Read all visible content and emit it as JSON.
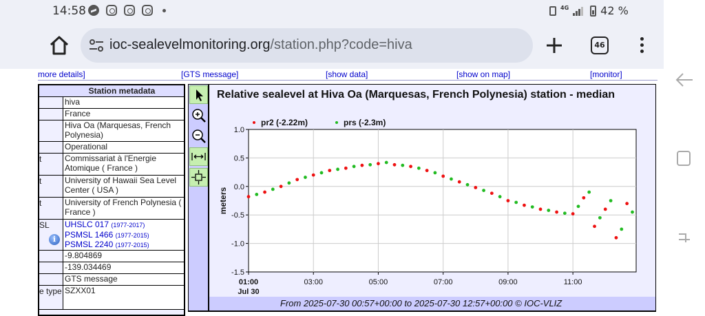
{
  "status": {
    "time": "14:58",
    "network": "4G",
    "battery": "42 %"
  },
  "browser": {
    "url_domain": "ioc-sealevelmonitoring.org",
    "url_path": "/station.php?code=hiva",
    "tab_count": "46"
  },
  "nav_links": [
    "more details]",
    "[GTS message]",
    "[show data]",
    "[show on map]",
    "[monitor]"
  ],
  "metadata": {
    "header": "Station metadata",
    "rows": [
      {
        "key": "",
        "value": "hiva",
        "h": 17
      },
      {
        "key": "",
        "value": "France",
        "h": 17
      },
      {
        "key": "",
        "value": "Hiva Oa (Marquesas, French Polynesia)",
        "h": 31
      },
      {
        "key": "",
        "value": "Operational",
        "h": 17
      },
      {
        "key": "t",
        "value": "Commissariat à l'Energie Atomique ( France )",
        "h": 32
      },
      {
        "key": "t",
        "value": "University of Hawaii Sea Level Center ( USA )",
        "h": 32
      },
      {
        "key": "t",
        "value": "University of French Polynesia ( France )",
        "h": 32
      },
      {
        "key": "SL",
        "links": [
          {
            "text": "UHSLC 017",
            "range": "(1977-2017)"
          },
          {
            "text": "PSMSL 1466",
            "range": "(1977-2015)"
          },
          {
            "text": "PSMSL 2240",
            "range": "(1977-2015)"
          }
        ],
        "h": 45
      },
      {
        "key": "",
        "value": "-9.804869",
        "h": 17
      },
      {
        "key": "",
        "value": "-139.034469",
        "h": 17
      },
      {
        "key": "",
        "value": "GTS message",
        "h": 17
      },
      {
        "key": "e type",
        "value": "SZXX01",
        "h": 35
      }
    ]
  },
  "chart_data": {
    "type": "scatter",
    "title": "Relative sealevel at Hiva Oa (Marquesas, French Polynesia) station - median",
    "ylabel": "meters",
    "xlabel": "",
    "ylim": [
      -1.5,
      1.0
    ],
    "xlim": [
      "2025-07-30 01:00",
      "2025-07-30 12:57"
    ],
    "yticks": [
      "1.0",
      "0.5",
      "0.0",
      "-0.5",
      "-1.0",
      "-1.5"
    ],
    "xticks": [
      "01:00",
      "03:00",
      "05:00",
      "07:00",
      "09:00",
      "11:00"
    ],
    "date_label": "Jul 30",
    "grid": true,
    "legend_placement": "top-left",
    "series": [
      {
        "name": "pr2 (-2.22m)",
        "color": "#ee1111",
        "x": [
          "2025-07-30 01:00",
          "2025-07-30 01:30",
          "2025-07-30 02:00",
          "2025-07-30 02:30",
          "2025-07-30 03:00",
          "2025-07-30 03:30",
          "2025-07-30 04:00",
          "2025-07-30 04:30",
          "2025-07-30 05:00",
          "2025-07-30 05:30",
          "2025-07-30 06:00",
          "2025-07-30 06:30",
          "2025-07-30 07:00",
          "2025-07-30 07:30",
          "2025-07-30 08:00",
          "2025-07-30 08:30",
          "2025-07-30 09:00",
          "2025-07-30 09:30",
          "2025-07-30 10:00",
          "2025-07-30 10:30",
          "2025-07-30 11:00",
          "2025-07-30 11:20",
          "2025-07-30 11:40",
          "2025-07-30 12:00",
          "2025-07-30 12:20",
          "2025-07-30 12:40"
        ],
        "values": [
          -0.18,
          -0.1,
          0.0,
          0.12,
          0.2,
          0.28,
          0.32,
          0.37,
          0.4,
          0.38,
          0.35,
          0.28,
          0.18,
          0.08,
          -0.02,
          -0.12,
          -0.25,
          -0.33,
          -0.4,
          -0.45,
          -0.48,
          -0.2,
          -0.7,
          -0.4,
          -0.9,
          -0.3
        ]
      },
      {
        "name": "prs (-2.3m)",
        "color": "#22bb22",
        "x": [
          "2025-07-30 01:15",
          "2025-07-30 01:45",
          "2025-07-30 02:15",
          "2025-07-30 02:45",
          "2025-07-30 03:15",
          "2025-07-30 03:45",
          "2025-07-30 04:15",
          "2025-07-30 04:45",
          "2025-07-30 05:15",
          "2025-07-30 05:45",
          "2025-07-30 06:15",
          "2025-07-30 06:45",
          "2025-07-30 07:15",
          "2025-07-30 07:45",
          "2025-07-30 08:15",
          "2025-07-30 08:45",
          "2025-07-30 09:15",
          "2025-07-30 09:45",
          "2025-07-30 10:15",
          "2025-07-30 10:45",
          "2025-07-30 11:10",
          "2025-07-30 11:30",
          "2025-07-30 11:50",
          "2025-07-30 12:10",
          "2025-07-30 12:30",
          "2025-07-30 12:50"
        ],
        "values": [
          -0.14,
          -0.05,
          0.06,
          0.16,
          0.24,
          0.3,
          0.35,
          0.38,
          0.42,
          0.37,
          0.32,
          0.24,
          0.13,
          0.03,
          -0.07,
          -0.18,
          -0.28,
          -0.36,
          -0.42,
          -0.47,
          -0.35,
          -0.1,
          -0.55,
          -0.25,
          -0.75,
          -0.45
        ]
      }
    ],
    "footer": "From 2025-07-30 00:57+00:00 to 2025-07-30 12:57+00:00 © IOC-VLIZ"
  }
}
